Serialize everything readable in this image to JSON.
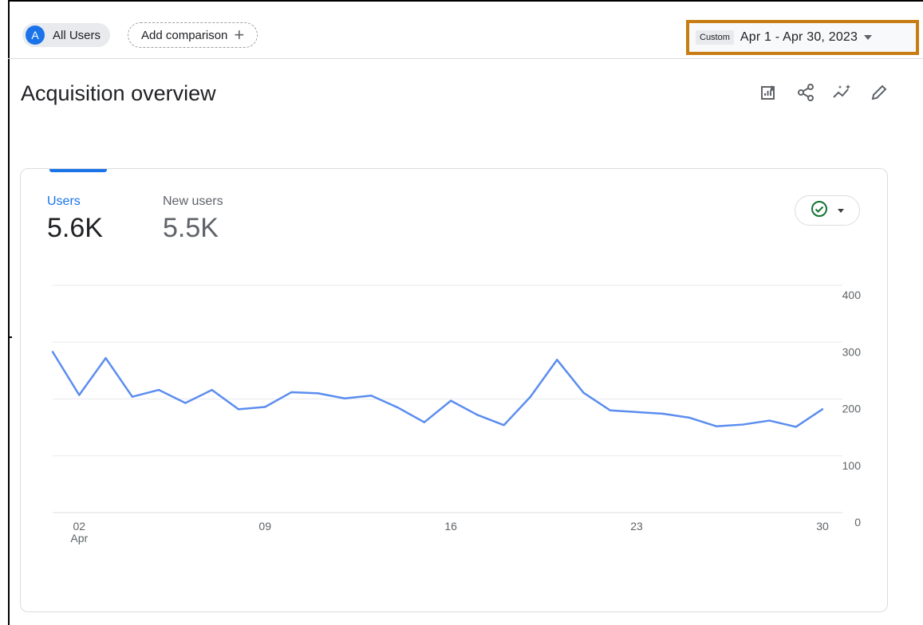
{
  "header": {
    "segment_avatar": "A",
    "segment_label": "All Users",
    "add_comparison_label": "Add comparison",
    "date_custom_label": "Custom",
    "date_range": "Apr 1 - Apr 30, 2023"
  },
  "page": {
    "title": "Acquisition overview",
    "toolbar_icons": [
      "customize-report-icon",
      "share-icon",
      "insights-icon",
      "edit-icon"
    ]
  },
  "card": {
    "metrics": [
      {
        "label": "Users",
        "value": "5.6K",
        "active": true
      },
      {
        "label": "New users",
        "value": "5.5K",
        "active": false
      }
    ],
    "status_icon": "check-circle-icon",
    "colors": {
      "active": "#1a73e8",
      "line": "#5b8def",
      "highlight_box": "#c77d12"
    }
  },
  "chart_data": {
    "type": "line",
    "x": [
      "2023-04-01",
      "2023-04-02",
      "2023-04-03",
      "2023-04-04",
      "2023-04-05",
      "2023-04-06",
      "2023-04-07",
      "2023-04-08",
      "2023-04-09",
      "2023-04-10",
      "2023-04-11",
      "2023-04-12",
      "2023-04-13",
      "2023-04-14",
      "2023-04-15",
      "2023-04-16",
      "2023-04-17",
      "2023-04-18",
      "2023-04-19",
      "2023-04-20",
      "2023-04-21",
      "2023-04-22",
      "2023-04-23",
      "2023-04-24",
      "2023-04-25",
      "2023-04-26",
      "2023-04-27",
      "2023-04-28",
      "2023-04-29",
      "2023-04-30"
    ],
    "series": [
      {
        "values": [
          283,
          207,
          272,
          204,
          216,
          193,
          216,
          182,
          186,
          212,
          210,
          201,
          206,
          185,
          159,
          197,
          172,
          154,
          204,
          269,
          211,
          180,
          177,
          174,
          167,
          152,
          155,
          162,
          151,
          182
        ]
      }
    ],
    "x_tick_labels": [
      {
        "label": "02",
        "sub": "Apr",
        "index": 1
      },
      {
        "label": "09",
        "sub": "",
        "index": 8
      },
      {
        "label": "16",
        "sub": "",
        "index": 15
      },
      {
        "label": "23",
        "sub": "",
        "index": 22
      },
      {
        "label": "30",
        "sub": "",
        "index": 29
      }
    ],
    "y_ticks": [
      "400",
      "300",
      "200",
      "100",
      "0"
    ],
    "ylim": [
      0,
      400
    ],
    "y_axis_side": "right",
    "grid": true
  }
}
